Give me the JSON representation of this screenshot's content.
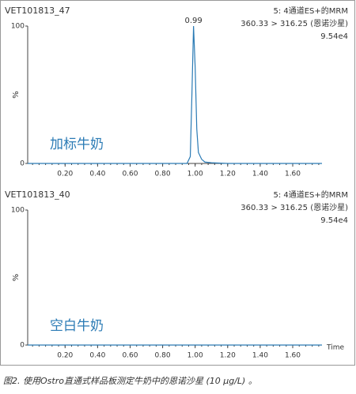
{
  "chart_data": [
    {
      "type": "line",
      "title": "VET101813_47",
      "header": [
        "5: 4通道ES+的MRM",
        "360.33 > 316.25 (恩诺沙星)",
        "9.54e4"
      ],
      "ylabel": "%",
      "annotation": "加标牛奶",
      "peak_label": {
        "text": "0.99",
        "x": 0.99,
        "y": 100
      },
      "xlim": [
        -0.03,
        1.78
      ],
      "ylim": [
        0,
        100
      ],
      "xticks": [
        {
          "value": 0.2,
          "label": "0.20"
        },
        {
          "value": 0.4,
          "label": "0.40"
        },
        {
          "value": 0.6,
          "label": "0.60"
        },
        {
          "value": 0.8,
          "label": "0.80"
        },
        {
          "value": 1.0,
          "label": "1.00"
        },
        {
          "value": 1.2,
          "label": "1.20"
        },
        {
          "value": 1.4,
          "label": "1.40"
        },
        {
          "value": 1.6,
          "label": "1.60"
        }
      ],
      "yticks": [
        0,
        100
      ],
      "series": [
        {
          "color": "#2b7bb5",
          "x": [
            -0.03,
            0.95,
            0.97,
            0.98,
            0.99,
            1.0,
            1.01,
            1.02,
            1.04,
            1.06,
            1.1,
            1.2,
            1.78
          ],
          "values": [
            0,
            0,
            5,
            50,
            100,
            70,
            25,
            8,
            3,
            1,
            0.5,
            0,
            0
          ]
        }
      ]
    },
    {
      "type": "line",
      "title": "VET101813_40",
      "header": [
        "5: 4通道ES+的MRM",
        "360.33 > 316.25 (恩诺沙星)",
        "9.54e4"
      ],
      "ylabel": "%",
      "xlabel": "Time",
      "annotation": "空白牛奶",
      "xlim": [
        -0.03,
        1.78
      ],
      "ylim": [
        0,
        100
      ],
      "xticks": [
        {
          "value": 0.2,
          "label": "0.20"
        },
        {
          "value": 0.4,
          "label": "0.40"
        },
        {
          "value": 0.6,
          "label": "0.60"
        },
        {
          "value": 0.8,
          "label": "0.80"
        },
        {
          "value": 1.0,
          "label": "1.00"
        },
        {
          "value": 1.2,
          "label": "1.20"
        },
        {
          "value": 1.4,
          "label": "1.40"
        },
        {
          "value": 1.6,
          "label": "1.60"
        }
      ],
      "yticks": [
        0,
        100
      ],
      "series": [
        {
          "color": "#2b7bb5",
          "x": [
            -0.03,
            1.78
          ],
          "values": [
            0,
            0
          ]
        }
      ]
    }
  ],
  "caption": "图2. 使用Ostro直通式样品板测定牛奶中的恩诺沙星 (10 µg/L) 。"
}
